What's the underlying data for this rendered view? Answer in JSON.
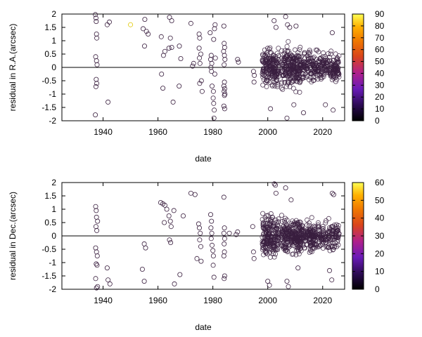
{
  "colors": {
    "axis": "#000000",
    "point_stroke": "#3a1f3f",
    "colorbar_stops": [
      "#000000",
      "#4b0d8c",
      "#8a2be2",
      "#c2185b",
      "#e65100",
      "#ff9800",
      "#ffd600",
      "#ffff66"
    ]
  },
  "chart_data": [
    {
      "type": "scatter",
      "title": "",
      "xlabel": "date",
      "ylabel": "residual in R.A.(arcsec)",
      "xlim": [
        1925,
        2028
      ],
      "ylim": [
        -2,
        2
      ],
      "xticks": [
        "1940",
        "1960",
        "1980",
        "2000",
        "2020"
      ],
      "yticks": [
        "2",
        "1.5",
        "1",
        "0.5",
        "0",
        "-0.5",
        "-1",
        "-1.5",
        "-2"
      ],
      "zero_line": true,
      "colorbar": {
        "min": 0,
        "max": 90,
        "ticks": [
          "90",
          "80",
          "70",
          "60",
          "50",
          "40",
          "30",
          "20",
          "10",
          "0"
        ]
      },
      "points": [
        {
          "x": 1937.2,
          "y": 1.98
        },
        {
          "x": 1937.4,
          "y": 1.85
        },
        {
          "x": 1937.5,
          "y": 1.72
        },
        {
          "x": 1937.6,
          "y": 1.25
        },
        {
          "x": 1937.7,
          "y": 1.1
        },
        {
          "x": 1937.3,
          "y": 0.4
        },
        {
          "x": 1937.6,
          "y": 0.25
        },
        {
          "x": 1937.8,
          "y": 0.1
        },
        {
          "x": 1937.5,
          "y": -0.45
        },
        {
          "x": 1937.7,
          "y": -0.6
        },
        {
          "x": 1937.4,
          "y": -0.72
        },
        {
          "x": 1937.2,
          "y": -1.78
        },
        {
          "x": 1941.5,
          "y": 1.6
        },
        {
          "x": 1942.3,
          "y": 1.7
        },
        {
          "x": 1941.8,
          "y": -1.3
        },
        {
          "x": 1950,
          "y": 1.6,
          "c": 85
        },
        {
          "x": 1955.2,
          "y": 1.8
        },
        {
          "x": 1954.6,
          "y": 1.45
        },
        {
          "x": 1955.8,
          "y": 1.35
        },
        {
          "x": 1956.4,
          "y": 1.25
        },
        {
          "x": 1955.1,
          "y": 0.8
        },
        {
          "x": 1961.2,
          "y": 1.15
        },
        {
          "x": 1962.5,
          "y": 0.6
        },
        {
          "x": 1962,
          "y": 0.45
        },
        {
          "x": 1961.3,
          "y": -0.25
        },
        {
          "x": 1961.8,
          "y": -0.78
        },
        {
          "x": 1964.2,
          "y": 1.88
        },
        {
          "x": 1965,
          "y": 1.75
        },
        {
          "x": 1964.5,
          "y": 1.1
        },
        {
          "x": 1964,
          "y": 0.72
        },
        {
          "x": 1965,
          "y": 0.75
        },
        {
          "x": 1965.5,
          "y": -1.3
        },
        {
          "x": 1967.7,
          "y": -0.7
        },
        {
          "x": 1967.8,
          "y": 0.8
        },
        {
          "x": 1968.3,
          "y": 0.33
        },
        {
          "x": 1972,
          "y": 1.65
        },
        {
          "x": 1973,
          "y": 0.15
        },
        {
          "x": 1972.6,
          "y": 0.05
        },
        {
          "x": 1975,
          "y": 1.25
        },
        {
          "x": 1975.2,
          "y": 1.1
        },
        {
          "x": 1975,
          "y": 0.72
        },
        {
          "x": 1975.6,
          "y": 0.5
        },
        {
          "x": 1975.1,
          "y": 0.35
        },
        {
          "x": 1975.3,
          "y": 0.15
        },
        {
          "x": 1975.8,
          "y": -0.5
        },
        {
          "x": 1975.2,
          "y": -0.6
        },
        {
          "x": 1976.1,
          "y": -0.9
        },
        {
          "x": 1979,
          "y": 1.3
        },
        {
          "x": 1979.4,
          "y": 0.45
        },
        {
          "x": 1979.2,
          "y": 0.3
        },
        {
          "x": 1979.6,
          "y": 0.15
        },
        {
          "x": 1979.3,
          "y": 0
        },
        {
          "x": 1979.5,
          "y": -0.15
        },
        {
          "x": 1979.7,
          "y": -0.7
        },
        {
          "x": 1980.2,
          "y": -0.9
        },
        {
          "x": 1980.1,
          "y": -1.15
        },
        {
          "x": 1980.3,
          "y": -1.35
        },
        {
          "x": 1980.5,
          "y": -1.6
        },
        {
          "x": 1980.4,
          "y": -1.9
        },
        {
          "x": 1980.8,
          "y": 1.6
        },
        {
          "x": 1980.6,
          "y": 1.45
        },
        {
          "x": 1980.3,
          "y": 1.05
        },
        {
          "x": 1980.9,
          "y": 0.35
        },
        {
          "x": 1980.7,
          "y": -0.25
        },
        {
          "x": 1984,
          "y": 1.55
        },
        {
          "x": 1984.1,
          "y": 0.9
        },
        {
          "x": 1984.3,
          "y": 0.75
        },
        {
          "x": 1983.9,
          "y": 0.6
        },
        {
          "x": 1984.2,
          "y": 0.45
        },
        {
          "x": 1984.4,
          "y": 0.3
        },
        {
          "x": 1984.1,
          "y": 0.1
        },
        {
          "x": 1984.2,
          "y": -0.55
        },
        {
          "x": 1984,
          "y": -0.7
        },
        {
          "x": 1984.3,
          "y": -0.8
        },
        {
          "x": 1984.1,
          "y": -0.9
        },
        {
          "x": 1984.4,
          "y": -1
        },
        {
          "x": 1984.2,
          "y": -1.05
        },
        {
          "x": 1984,
          "y": -1.45
        },
        {
          "x": 1984.3,
          "y": -1.55
        },
        {
          "x": 1989,
          "y": 0.3
        },
        {
          "x": 1989.3,
          "y": 0.2
        },
        {
          "x": 1994.8,
          "y": -0.15
        },
        {
          "x": 1995.1,
          "y": -0.3
        },
        {
          "x": 1995,
          "y": -0.55
        },
        {
          "x": 2006.5,
          "y": 1.9
        },
        {
          "x": 2007.2,
          "y": 1.6
        },
        {
          "x": 2008,
          "y": 1.5
        },
        {
          "x": 2010.3,
          "y": 1.55
        },
        {
          "x": 2002.3,
          "y": 1.75
        },
        {
          "x": 2003,
          "y": 1.5
        },
        {
          "x": 2001,
          "y": -1.55
        },
        {
          "x": 2007,
          "y": -1.9
        },
        {
          "x": 2009.5,
          "y": -1.4
        },
        {
          "x": 2013,
          "y": -1.7
        },
        {
          "x": 2023.5,
          "y": 1.3
        },
        {
          "x": 2021,
          "y": -1.4
        },
        {
          "x": 2023.8,
          "y": -1.6
        }
      ],
      "dense_clusters": [
        {
          "x": [
            1998,
            2004
          ],
          "y": [
            -1.2,
            1.2
          ],
          "n": 180
        },
        {
          "x": [
            2005,
            2012
          ],
          "y": [
            -1.4,
            1.4
          ],
          "n": 220
        },
        {
          "x": [
            2012,
            2026
          ],
          "y": [
            -1.0,
            1.0
          ],
          "n": 280
        }
      ]
    },
    {
      "type": "scatter",
      "title": "",
      "xlabel": "date",
      "ylabel": "residual in Dec.(arcsec)",
      "xlim": [
        1925,
        2028
      ],
      "ylim": [
        -2,
        2
      ],
      "xticks": [
        "1940",
        "1960",
        "1980",
        "2000",
        "2020"
      ],
      "yticks": [
        "2",
        "1.5",
        "1",
        "0.5",
        "0",
        "-0.5",
        "-1",
        "-1.5",
        "-2"
      ],
      "zero_line": true,
      "colorbar": {
        "min": 0,
        "max": 60,
        "ticks": [
          "60",
          "50",
          "40",
          "30",
          "20",
          "10",
          "0"
        ]
      },
      "points": [
        {
          "x": 1937.3,
          "y": 1.1
        },
        {
          "x": 1937.5,
          "y": 0.95
        },
        {
          "x": 1937.6,
          "y": 0.7
        },
        {
          "x": 1938,
          "y": 0.55
        },
        {
          "x": 1937.4,
          "y": 0.35
        },
        {
          "x": 1937.7,
          "y": 0.2
        },
        {
          "x": 1937.3,
          "y": -0.45
        },
        {
          "x": 1937.6,
          "y": -0.6
        },
        {
          "x": 1937.9,
          "y": -0.75
        },
        {
          "x": 1937.5,
          "y": -1.05
        },
        {
          "x": 1937.8,
          "y": -1.1
        },
        {
          "x": 1937.3,
          "y": -1.6
        },
        {
          "x": 1937.6,
          "y": -1.95
        },
        {
          "x": 1938,
          "y": -1.9
        },
        {
          "x": 1941.5,
          "y": -1.2
        },
        {
          "x": 1941.8,
          "y": -1.65
        },
        {
          "x": 1942.5,
          "y": -1.8
        },
        {
          "x": 1954.3,
          "y": -1.25
        },
        {
          "x": 1955,
          "y": -1.7
        },
        {
          "x": 1955.5,
          "y": -0.45
        },
        {
          "x": 1955,
          "y": -0.3
        },
        {
          "x": 1961,
          "y": 1.25
        },
        {
          "x": 1961.8,
          "y": 1.2
        },
        {
          "x": 1962.5,
          "y": 1.15
        },
        {
          "x": 1963.2,
          "y": 1
        },
        {
          "x": 1964,
          "y": 0.75
        },
        {
          "x": 1964.5,
          "y": 0.55
        },
        {
          "x": 1964.8,
          "y": 0.35
        },
        {
          "x": 1964.2,
          "y": -0.15
        },
        {
          "x": 1964.6,
          "y": -0.25
        },
        {
          "x": 1966,
          "y": -1.8
        },
        {
          "x": 1968,
          "y": -1.45
        },
        {
          "x": 1965.8,
          "y": 0.95
        },
        {
          "x": 1962.3,
          "y": 0.5
        },
        {
          "x": 1969.2,
          "y": 0.75
        },
        {
          "x": 1972,
          "y": 1.6
        },
        {
          "x": 1973.5,
          "y": 1.55
        },
        {
          "x": 1974.8,
          "y": 0.45
        },
        {
          "x": 1975.1,
          "y": 0.3
        },
        {
          "x": 1975.4,
          "y": 0.1
        },
        {
          "x": 1975.2,
          "y": -0.15
        },
        {
          "x": 1975.6,
          "y": -0.4
        },
        {
          "x": 1974.2,
          "y": -0.85
        },
        {
          "x": 1975.7,
          "y": -0.95
        },
        {
          "x": 1979.2,
          "y": 0.8
        },
        {
          "x": 1979.5,
          "y": 0.55
        },
        {
          "x": 1979.3,
          "y": 0.3
        },
        {
          "x": 1979.6,
          "y": 0.1
        },
        {
          "x": 1979.4,
          "y": -0.1
        },
        {
          "x": 1979.7,
          "y": -0.35
        },
        {
          "x": 1980,
          "y": -0.55
        },
        {
          "x": 1980.2,
          "y": -0.75
        },
        {
          "x": 1980.1,
          "y": -1.1
        },
        {
          "x": 1980.4,
          "y": -1.55
        },
        {
          "x": 1984,
          "y": 1.45
        },
        {
          "x": 1984.2,
          "y": 0.3
        },
        {
          "x": 1984,
          "y": 0.1
        },
        {
          "x": 1984.3,
          "y": -0.1
        },
        {
          "x": 1984.1,
          "y": -0.3
        },
        {
          "x": 1984.2,
          "y": -0.6
        },
        {
          "x": 1984,
          "y": -0.75
        },
        {
          "x": 1984.3,
          "y": -1.5
        },
        {
          "x": 1984.1,
          "y": -1.6
        },
        {
          "x": 1986,
          "y": 0.1
        },
        {
          "x": 1988.5,
          "y": 0.05
        },
        {
          "x": 1989,
          "y": 0.15
        },
        {
          "x": 1994.5,
          "y": 0.35
        },
        {
          "x": 1994.8,
          "y": -0.6
        },
        {
          "x": 1995,
          "y": -0.85
        },
        {
          "x": 2002.4,
          "y": 1.95
        },
        {
          "x": 2002.8,
          "y": 1.9
        },
        {
          "x": 2006.5,
          "y": 1.8
        },
        {
          "x": 2008.5,
          "y": 1.35
        },
        {
          "x": 2003,
          "y": 1.6
        },
        {
          "x": 2000,
          "y": -1.7
        },
        {
          "x": 2000.6,
          "y": -1.85
        },
        {
          "x": 2007,
          "y": -1.7
        },
        {
          "x": 2007.5,
          "y": -1.9
        },
        {
          "x": 2011,
          "y": -1.2
        },
        {
          "x": 2023.5,
          "y": 1.6
        },
        {
          "x": 2024,
          "y": 1.55
        },
        {
          "x": 2023.3,
          "y": -1.65
        },
        {
          "x": 2022.5,
          "y": -1.3
        }
      ],
      "dense_clusters": [
        {
          "x": [
            1998,
            2004
          ],
          "y": [
            -1.3,
            1.3
          ],
          "n": 190
        },
        {
          "x": [
            2005,
            2012
          ],
          "y": [
            -1.3,
            1.3
          ],
          "n": 220
        },
        {
          "x": [
            2012,
            2026
          ],
          "y": [
            -0.9,
            0.9
          ],
          "n": 280
        }
      ]
    }
  ]
}
